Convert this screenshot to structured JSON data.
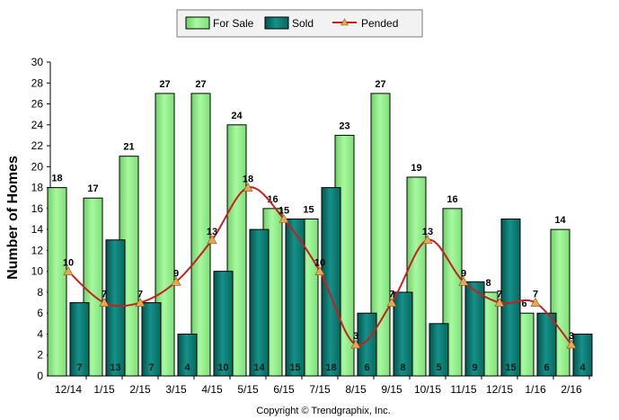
{
  "chart_data": {
    "type": "bar",
    "categories": [
      "12/14",
      "1/15",
      "2/15",
      "3/15",
      "4/15",
      "5/15",
      "6/15",
      "7/15",
      "8/15",
      "9/15",
      "10/15",
      "11/15",
      "12/15",
      "1/16",
      "2/16"
    ],
    "series": [
      {
        "name": "For Sale",
        "kind": "bar",
        "color": "#98F090",
        "values": [
          18,
          17,
          21,
          27,
          27,
          24,
          16,
          15,
          23,
          27,
          19,
          16,
          8,
          6,
          14
        ]
      },
      {
        "name": "Sold",
        "kind": "bar",
        "color": "#0E7A72",
        "values": [
          7,
          13,
          7,
          4,
          10,
          14,
          15,
          18,
          6,
          8,
          5,
          9,
          15,
          6,
          4
        ]
      },
      {
        "name": "Pended",
        "kind": "line",
        "color": "#C81E1E",
        "marker_color": "#E8A850",
        "values": [
          10,
          7,
          7,
          9,
          13,
          18,
          15,
          10,
          3,
          7,
          13,
          9,
          7,
          7,
          3
        ]
      }
    ],
    "ylabel": "Number of Homes",
    "ylim": [
      0,
      30
    ],
    "yticks": [
      0,
      2,
      4,
      6,
      8,
      10,
      12,
      14,
      16,
      18,
      20,
      22,
      24,
      26,
      28,
      30
    ],
    "grid": false,
    "legend_position": "top-center"
  },
  "footer": "Copyright © Trendgraphix, Inc."
}
